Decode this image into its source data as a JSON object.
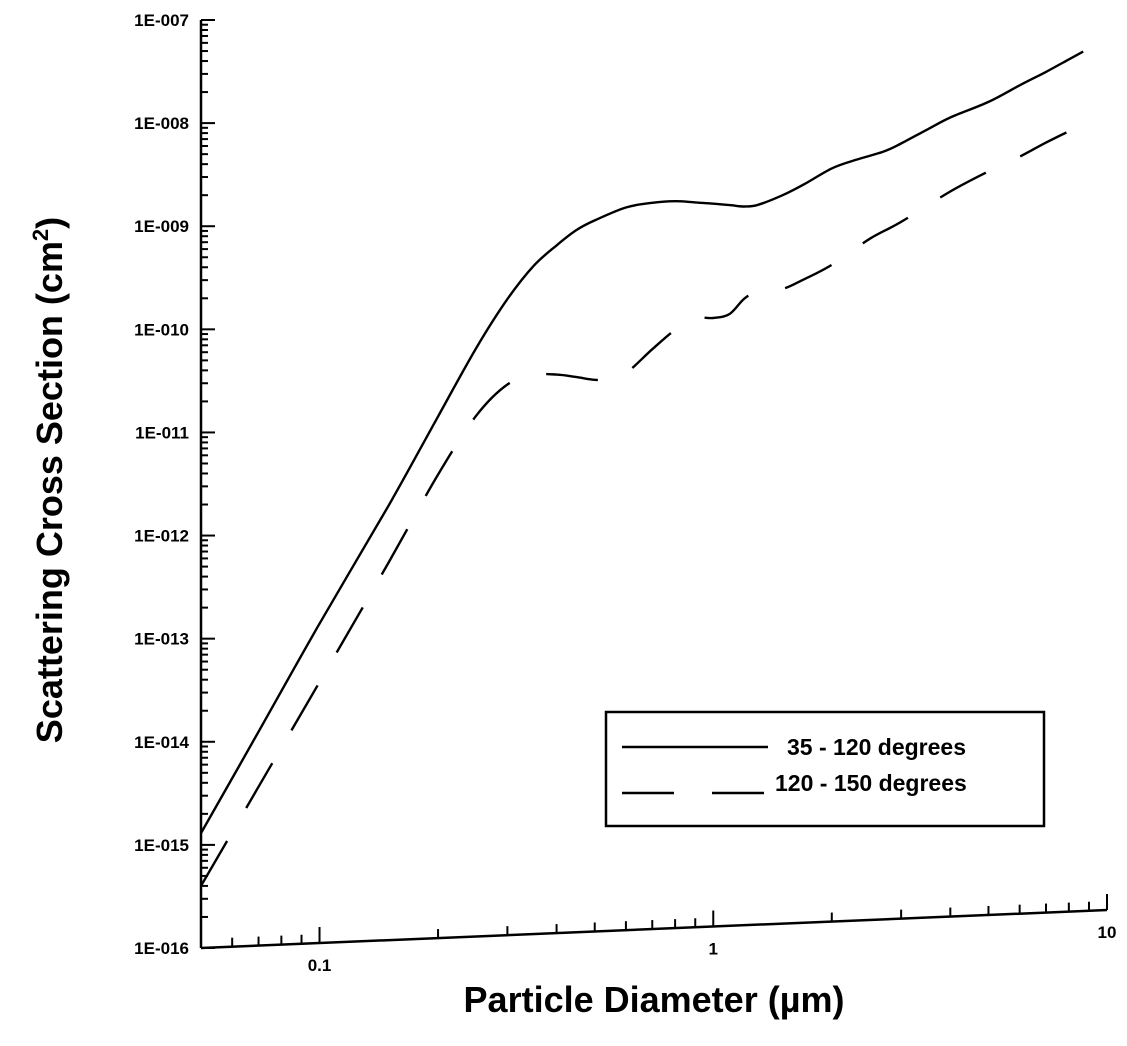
{
  "chart_data": {
    "type": "line",
    "xlabel": "Particle Diameter (",
    "xlabel_symbol": "µ",
    "xlabel_tail": "m)",
    "ylabel": "Scattering Cross Section (cm",
    "ylabel_sup": "2",
    "ylabel_tail": ")",
    "x_scale": "log",
    "y_scale": "log",
    "xlim": [
      0.05,
      10
    ],
    "ylim": [
      1e-16,
      1e-07
    ],
    "x_ticks": [
      {
        "value": 0.1,
        "label": "0.1"
      },
      {
        "value": 1,
        "label": "1"
      },
      {
        "value": 10,
        "label": "10"
      }
    ],
    "y_ticks": [
      {
        "value": 1e-16,
        "label": "1E-016"
      },
      {
        "value": 1e-15,
        "label": "1E-015"
      },
      {
        "value": 1e-14,
        "label": "1E-014"
      },
      {
        "value": 1e-13,
        "label": "1E-013"
      },
      {
        "value": 1e-12,
        "label": "1E-012"
      },
      {
        "value": 1e-11,
        "label": "1E-011"
      },
      {
        "value": 1e-10,
        "label": "1E-010"
      },
      {
        "value": 1e-09,
        "label": "1E-009"
      },
      {
        "value": 1e-08,
        "label": "1E-008"
      },
      {
        "value": 1e-07,
        "label": "1E-007"
      }
    ],
    "grid": false,
    "legend_position": "bottom-right",
    "series": [
      {
        "name": "35 - 120 degrees",
        "style": "solid",
        "x": [
          0.05,
          0.07,
          0.1,
          0.15,
          0.2,
          0.25,
          0.3,
          0.35,
          0.4,
          0.45,
          0.5,
          0.6,
          0.7,
          0.8,
          0.9,
          1.0,
          1.1,
          1.2,
          1.3,
          1.5,
          1.7,
          2.0,
          2.3,
          2.7,
          3.0,
          3.5,
          4.0,
          5.0,
          6.0,
          7.0,
          8.0,
          8.7
        ],
        "y": [
          1.3e-15,
          1.2e-14,
          1.3e-13,
          1.8e-12,
          1.3e-11,
          6e-11,
          1.8e-10,
          3.8e-10,
          6e-10,
          8.5e-10,
          1.05e-09,
          1.4e-09,
          1.55e-09,
          1.6e-09,
          1.55e-09,
          1.5e-09,
          1.45e-09,
          1.4e-09,
          1.45e-09,
          1.8e-09,
          2.3e-09,
          3.3e-09,
          4e-09,
          4.8e-09,
          5.8e-09,
          8e-09,
          1.05e-08,
          1.5e-08,
          2.2e-08,
          3e-08,
          4e-08,
          4.8e-08
        ]
      },
      {
        "name": "120 - 150 degrees",
        "style": "dashed",
        "x": [
          0.05,
          0.07,
          0.1,
          0.15,
          0.2,
          0.25,
          0.3,
          0.35,
          0.4,
          0.45,
          0.5,
          0.55,
          0.6,
          0.7,
          0.8,
          0.9,
          1.0,
          1.1,
          1.2,
          1.3,
          1.5,
          1.7,
          2.0,
          2.5,
          3.0,
          4.0,
          5.0,
          6.0,
          7.0,
          8.0,
          8.7
        ],
        "y": [
          4e-16,
          3.5e-15,
          3.5e-14,
          5e-13,
          3.5e-12,
          1.3e-11,
          2.6e-11,
          3.2e-11,
          3.2e-11,
          3e-11,
          2.8e-11,
          2.8e-11,
          3.2e-11,
          5.5e-11,
          8.5e-11,
          1.1e-10,
          1.1e-10,
          1.2e-10,
          1.7e-10,
          2e-10,
          2.1e-10,
          2.6e-10,
          3.6e-10,
          6.5e-10,
          9.5e-10,
          1.9e-09,
          3e-09,
          4.2e-09,
          5.8e-09,
          7.5e-09,
          8.5e-09
        ]
      }
    ]
  }
}
